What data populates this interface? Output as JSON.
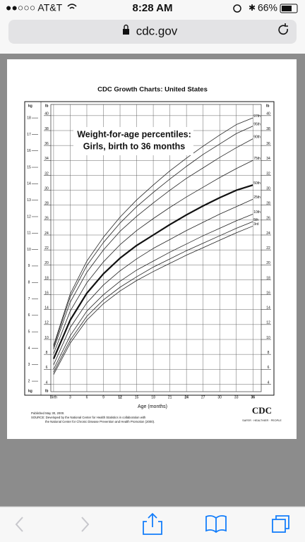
{
  "status_bar": {
    "carrier": "●●○○○ AT&T",
    "time": "8:28 AM",
    "battery": "66%"
  },
  "address_bar": {
    "url": "cdc.gov"
  },
  "chart_data": {
    "type": "line",
    "title": "CDC Growth Charts: United States",
    "annotations": [
      "Weight-for-age percentiles:",
      "Girls, birth to 36 months"
    ],
    "xlabel": "Age (months)",
    "ylabel": "lb",
    "y2label": "kg",
    "x": [
      0,
      3,
      6,
      9,
      12,
      15,
      18,
      21,
      24,
      27,
      30,
      33,
      36
    ],
    "series": [
      {
        "name": "3rd",
        "color": "#222222",
        "width": 0.8,
        "values": [
          5.3,
          9.5,
          12.6,
          14.8,
          16.5,
          17.9,
          19.1,
          20.2,
          21.3,
          22.3,
          23.3,
          24.3,
          25.2
        ]
      },
      {
        "name": "5th",
        "color": "#222222",
        "width": 0.8,
        "values": [
          5.6,
          9.9,
          13.1,
          15.3,
          17.0,
          18.4,
          19.7,
          20.8,
          21.9,
          22.9,
          23.9,
          24.9,
          25.8
        ]
      },
      {
        "name": "10th",
        "color": "#222222",
        "width": 0.8,
        "values": [
          6.0,
          10.5,
          13.8,
          16.0,
          17.8,
          19.3,
          20.5,
          21.7,
          22.8,
          23.9,
          24.9,
          25.9,
          26.8
        ]
      },
      {
        "name": "25th",
        "color": "#222222",
        "width": 0.8,
        "values": [
          6.6,
          11.6,
          14.9,
          17.3,
          19.2,
          20.8,
          22.2,
          23.4,
          24.6,
          25.7,
          26.8,
          27.8,
          28.8
        ]
      },
      {
        "name": "50th",
        "color": "#111111",
        "width": 2.2,
        "values": [
          7.4,
          12.6,
          16.2,
          18.8,
          20.9,
          22.6,
          24.0,
          25.4,
          26.7,
          27.9,
          29.0,
          30.0,
          30.7
        ]
      },
      {
        "name": "75th",
        "color": "#222222",
        "width": 0.8,
        "values": [
          8.1,
          13.8,
          17.6,
          20.4,
          22.7,
          24.6,
          26.2,
          27.7,
          29.1,
          30.4,
          31.7,
          32.9,
          34.0
        ]
      },
      {
        "name": "90th",
        "color": "#222222",
        "width": 0.8,
        "values": [
          8.7,
          15.0,
          19.0,
          22.0,
          24.5,
          26.5,
          28.3,
          30.0,
          31.6,
          33.0,
          34.4,
          35.7,
          36.9
        ]
      },
      {
        "name": "95th",
        "color": "#222222",
        "width": 0.8,
        "values": [
          9.0,
          15.7,
          19.9,
          23.0,
          25.6,
          27.8,
          29.7,
          31.5,
          33.2,
          34.8,
          36.2,
          37.6,
          38.6
        ]
      },
      {
        "name": "97th",
        "color": "#222222",
        "width": 0.8,
        "values": [
          9.2,
          16.1,
          20.5,
          23.7,
          26.4,
          28.7,
          30.7,
          32.6,
          34.3,
          35.9,
          37.4,
          38.8,
          39.7
        ]
      }
    ],
    "xlim": [
      -0.5,
      37.5
    ],
    "xticks": [
      {
        "value": 0,
        "label": "Birth"
      },
      3,
      6,
      9,
      12,
      15,
      18,
      21,
      24,
      27,
      30,
      33,
      36
    ],
    "ylim": [
      3,
      41.5
    ],
    "yticks": [
      4,
      6,
      8,
      10,
      12,
      14,
      16,
      18,
      20,
      22,
      24,
      26,
      28,
      30,
      32,
      34,
      36,
      38,
      40
    ],
    "y2lim": [
      1.36,
      18.82
    ],
    "y2ticks": [
      2,
      3,
      4,
      5,
      6,
      7,
      8,
      9,
      10,
      11,
      12,
      13,
      14,
      15,
      16,
      17,
      18
    ],
    "grid": true
  },
  "footnote": [
    "Published May 30, 2000.",
    "SOURCE: Developed by the National Center for Health Statistics in collaboration with",
    "the National Center for Chronic Disease Prevention and Health Promotion (2000)."
  ],
  "logo": {
    "mark": "CDC",
    "tagline": "SAFER · HEALTHIER · PEOPLE"
  }
}
